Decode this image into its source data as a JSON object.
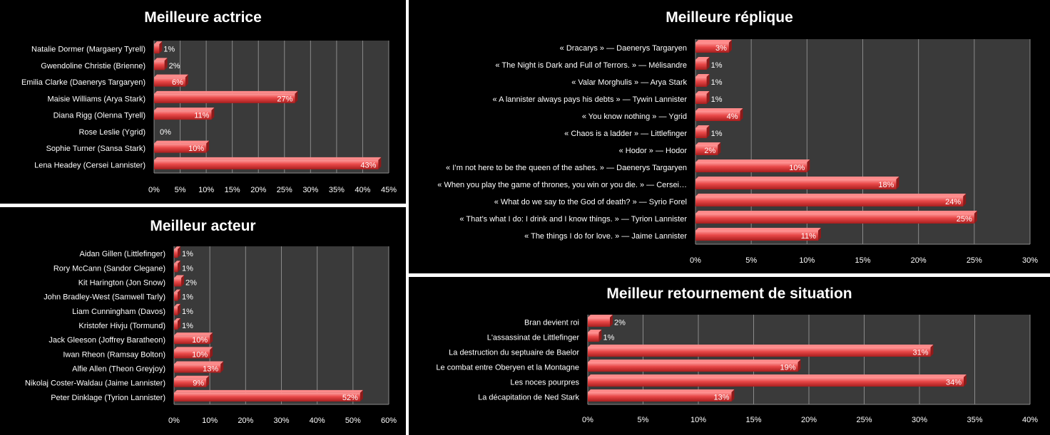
{
  "chart_data": [
    {
      "id": "actrice",
      "type": "bar",
      "orientation": "horizontal",
      "title": "Meilleure actrice",
      "categories": [
        "Natalie Dormer (Margaery Tyrell)",
        "Gwendoline Christie (Brienne)",
        "Emilia Clarke (Daenerys Targaryen)",
        "Maisie Williams (Arya Stark)",
        "Diana Rigg (Olenna Tyrell)",
        "Rose Leslie (Ygrid)",
        "Sophie Turner (Sansa Stark)",
        "Lena Headey (Cersei Lannister)"
      ],
      "values": [
        1,
        2,
        6,
        27,
        11,
        0,
        10,
        43
      ],
      "value_labels": [
        "1%",
        "2%",
        "6%",
        "27%",
        "11%",
        "0%",
        "10%",
        "43%"
      ],
      "xlim": [
        0,
        45
      ],
      "x_ticks": [
        "0%",
        "5%",
        "10%",
        "15%",
        "20%",
        "25%",
        "30%",
        "35%",
        "40%",
        "45%"
      ],
      "grid": true,
      "bar_color": "#e84848",
      "plot_bg": "#3a3a3a"
    },
    {
      "id": "acteur",
      "type": "bar",
      "orientation": "horizontal",
      "title": "Meilleur acteur",
      "categories": [
        "Aidan Gillen (Littlefinger)",
        "Rory McCann (Sandor Clegane)",
        "Kit Harington (Jon Snow)",
        "John Bradley-West (Samwell Tarly)",
        "Liam Cunningham (Davos)",
        "Kristofer Hivju (Tormund)",
        "Jack Gleeson (Joffrey Baratheon)",
        "Iwan Rheon (Ramsay Bolton)",
        "Alfie Allen (Theon Greyjoy)",
        "Nikolaj Coster-Waldau (Jaime Lannister)",
        "Peter Dinklage (Tyrion Lannister)"
      ],
      "values": [
        1,
        1,
        2,
        1,
        1,
        1,
        10,
        10,
        13,
        9,
        52
      ],
      "value_labels": [
        "1%",
        "1%",
        "2%",
        "1%",
        "1%",
        "1%",
        "10%",
        "10%",
        "13%",
        "9%",
        "52%"
      ],
      "xlim": [
        0,
        60
      ],
      "x_ticks": [
        "0%",
        "10%",
        "20%",
        "30%",
        "40%",
        "50%",
        "60%"
      ],
      "grid": true,
      "bar_color": "#e84848",
      "plot_bg": "#3a3a3a"
    },
    {
      "id": "replique",
      "type": "bar",
      "orientation": "horizontal",
      "title": "Meilleure réplique",
      "categories": [
        "« Dracarys » — Daenerys Targaryen",
        "« The Night is Dark and Full of Terrors. » — Mélisandre",
        "« Valar Morghulis » — Arya Stark",
        "« A lannister always pays his debts » — Tywin Lannister",
        "« You know nothing » — Ygrid",
        "« Chaos is a ladder » — Littlefinger",
        "« Hodor » — Hodor",
        "« I’m not here to be the queen of the ashes. » — Daenerys Targaryen",
        "« When you play the game of thrones, you win or you die. » — Cersei…",
        "« What do we say to the God of death? » — Syrio Forel",
        "« That’s what I do: I drink and I know things. » — Tyrion Lannister",
        "« The things I do for love. » — Jaime Lannister"
      ],
      "values": [
        3,
        1,
        1,
        1,
        4,
        1,
        2,
        10,
        18,
        24,
        25,
        11
      ],
      "value_labels": [
        "3%",
        "1%",
        "1%",
        "1%",
        "4%",
        "1%",
        "2%",
        "10%",
        "18%",
        "24%",
        "25%",
        "11%"
      ],
      "xlim": [
        0,
        30
      ],
      "x_ticks": [
        "0%",
        "5%",
        "10%",
        "15%",
        "20%",
        "25%",
        "30%"
      ],
      "grid": true,
      "bar_color": "#e84848",
      "plot_bg": "#3a3a3a"
    },
    {
      "id": "retournement",
      "type": "bar",
      "orientation": "horizontal",
      "title": "Meilleur retournement de situation",
      "categories": [
        "Bran devient roi",
        "L'assassinat de Littlefinger",
        "La destruction du septuaire de Baelor",
        "Le combat entre Oberyen et la Montagne",
        "Les noces pourpres",
        "La décapitation de Ned Stark"
      ],
      "values": [
        2,
        1,
        31,
        19,
        34,
        13
      ],
      "value_labels": [
        "2%",
        "1%",
        "31%",
        "19%",
        "34%",
        "13%"
      ],
      "xlim": [
        0,
        40
      ],
      "x_ticks": [
        "0%",
        "5%",
        "10%",
        "15%",
        "20%",
        "25%",
        "30%",
        "35%",
        "40%"
      ],
      "grid": true,
      "bar_color": "#e84848",
      "plot_bg": "#3a3a3a"
    }
  ]
}
